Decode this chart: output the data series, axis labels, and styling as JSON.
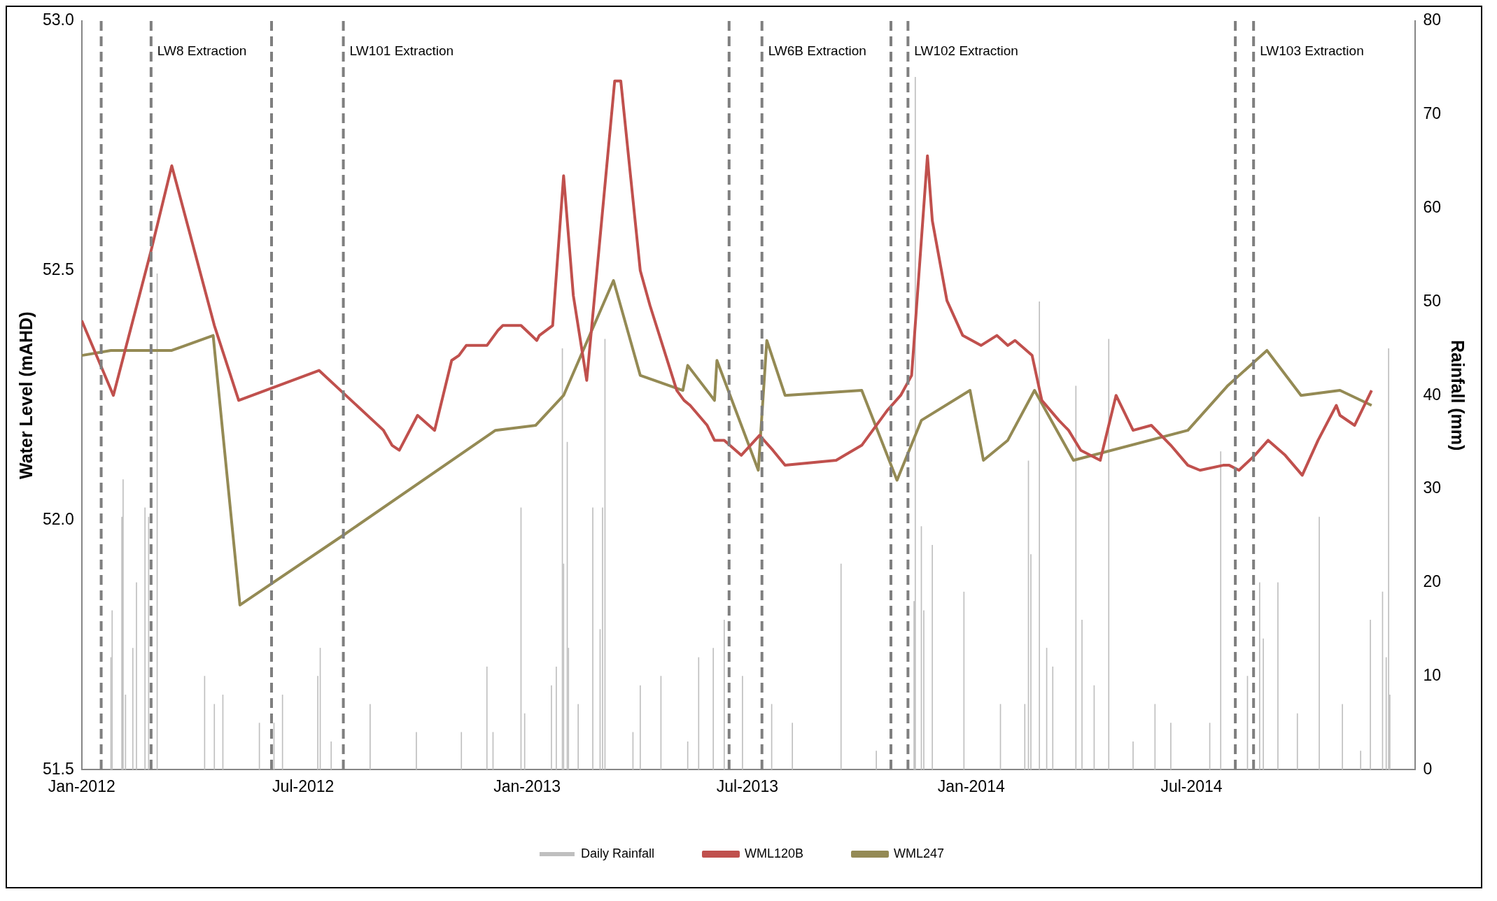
{
  "chart_data": {
    "type": "line",
    "xlabel": null,
    "ylabel": "Water Level (mAHD)",
    "y2label": "Rainfall (mm)",
    "legend": "bottom",
    "marker": "none",
    "line_style": "solid",
    "grid": false,
    "xlim": [
      "2012-01-01",
      "2015-01-01"
    ],
    "xticks": [
      {
        "value": "2012-01-01",
        "label": "Jan-2012"
      },
      {
        "value": "2012-07-01",
        "label": "Jul-2012"
      },
      {
        "value": "2013-01-01",
        "label": "Jan-2013"
      },
      {
        "value": "2013-07-01",
        "label": "Jul-2013"
      },
      {
        "value": "2014-01-01",
        "label": "Jan-2014"
      },
      {
        "value": "2014-07-01",
        "label": "Jul-2014"
      }
    ],
    "ylim": [
      51.5,
      53.0
    ],
    "yticks": [
      {
        "value": 51.5,
        "label": "51.5"
      },
      {
        "value": 52,
        "label": "52.0"
      },
      {
        "value": 52.5,
        "label": "52.5"
      },
      {
        "value": 53,
        "label": "53.0"
      }
    ],
    "y2lim": [
      0,
      80
    ],
    "y2ticks": [
      0,
      10,
      20,
      30,
      40,
      50,
      60,
      70,
      80
    ],
    "ref_lines": [
      {
        "axis": "x",
        "value": "2012-01-17",
        "label": null,
        "color": "#7f7f7f",
        "line_style": "dashed"
      },
      {
        "axis": "x",
        "value": "2012-02-27",
        "label": "LW8 Extraction",
        "color": "#7f7f7f",
        "line_style": "dashed"
      },
      {
        "axis": "x",
        "value": "2012-06-05",
        "label": null,
        "color": "#7f7f7f",
        "line_style": "dashed"
      },
      {
        "axis": "x",
        "value": "2012-08-03",
        "label": "LW101 Extraction",
        "color": "#7f7f7f",
        "line_style": "dashed"
      },
      {
        "axis": "x",
        "value": "2013-06-16",
        "label": null,
        "color": "#7f7f7f",
        "line_style": "dashed"
      },
      {
        "axis": "x",
        "value": "2013-07-13",
        "label": "LW6B Extraction",
        "color": "#7f7f7f",
        "line_style": "dashed"
      },
      {
        "axis": "x",
        "value": "2013-10-27",
        "label": null,
        "color": "#7f7f7f",
        "line_style": "dashed"
      },
      {
        "axis": "x",
        "value": "2013-11-10",
        "label": "LW102 Extraction",
        "color": "#7f7f7f",
        "line_style": "dashed"
      },
      {
        "axis": "x",
        "value": "2014-08-06",
        "label": null,
        "color": "#7f7f7f",
        "line_style": "dashed"
      },
      {
        "axis": "x",
        "value": "2014-08-21",
        "label": "LW103 Extraction",
        "color": "#7f7f7f",
        "line_style": "dashed"
      }
    ],
    "series": [
      {
        "name": "Daily Rainfall",
        "type": "bar",
        "axis": "y2",
        "color": "#bfbfbf",
        "x": [
          "2012-01-25",
          "2012-01-26",
          "2012-02-03",
          "2012-02-04",
          "2012-02-06",
          "2012-02-12",
          "2012-02-15",
          "2012-02-22",
          "2012-02-25",
          "2012-03-03",
          "2012-04-11",
          "2012-04-19",
          "2012-04-26",
          "2012-05-26",
          "2012-06-07",
          "2012-06-14",
          "2012-07-13",
          "2012-07-15",
          "2012-07-24",
          "2012-08-25",
          "2012-10-02",
          "2012-11-08",
          "2012-11-29",
          "2012-12-04",
          "2012-12-27",
          "2012-12-30",
          "2013-01-21",
          "2013-01-25",
          "2013-01-30",
          "2013-01-31",
          "2013-02-03",
          "2013-02-04",
          "2013-02-12",
          "2013-02-24",
          "2013-03-02",
          "2013-03-04",
          "2013-03-06",
          "2013-03-29",
          "2013-04-04",
          "2013-04-21",
          "2013-05-13",
          "2013-05-22",
          "2013-06-03",
          "2013-06-12",
          "2013-06-27",
          "2013-07-21",
          "2013-08-07",
          "2013-09-16",
          "2013-10-15",
          "2013-11-15",
          "2013-11-16",
          "2013-11-21",
          "2013-11-23",
          "2013-11-30",
          "2013-12-26",
          "2014-01-25",
          "2014-02-14",
          "2014-02-17",
          "2014-02-19",
          "2014-02-26",
          "2014-03-04",
          "2014-03-09",
          "2014-03-28",
          "2014-04-02",
          "2014-04-12",
          "2014-04-24",
          "2014-05-14",
          "2014-06-01",
          "2014-06-14",
          "2014-07-16",
          "2014-07-25",
          "2014-08-16",
          "2014-08-26",
          "2014-08-29",
          "2014-09-10",
          "2014-09-26",
          "2014-10-14",
          "2014-11-02",
          "2014-11-17",
          "2014-11-25",
          "2014-12-05",
          "2014-12-08",
          "2014-12-10",
          "2014-12-11"
        ],
        "values": [
          12,
          17,
          27,
          31,
          8,
          13,
          20,
          28,
          27,
          53,
          10,
          7,
          8,
          5,
          5,
          8,
          10,
          13,
          3,
          7,
          4,
          4,
          11,
          4,
          28,
          6,
          9,
          11,
          45,
          22,
          35,
          13,
          7,
          28,
          15,
          28,
          46,
          4,
          9,
          10,
          3,
          12,
          13,
          16,
          10,
          7,
          5,
          22,
          2,
          18,
          74,
          26,
          17,
          24,
          19,
          7,
          7,
          33,
          23,
          50,
          13,
          11,
          41,
          16,
          9,
          46,
          3,
          7,
          5,
          5,
          34,
          10,
          20,
          14,
          20,
          6,
          27,
          7,
          2,
          16,
          19,
          12,
          45,
          8
        ]
      },
      {
        "name": "WML120B",
        "color": "#c0504d",
        "x": [
          "2012-01-01",
          "2012-01-27",
          "2012-02-27",
          "2012-03-15",
          "2012-04-19",
          "2012-05-09",
          "2012-07-14",
          "2012-09-05",
          "2012-09-12",
          "2012-09-18",
          "2012-10-03",
          "2012-10-17",
          "2012-10-31",
          "2012-11-06",
          "2012-11-12",
          "2012-11-29",
          "2012-12-08",
          "2012-12-12",
          "2012-12-27",
          "2013-01-09",
          "2013-01-11",
          "2013-01-22",
          "2013-01-31",
          "2013-02-08",
          "2013-02-19",
          "2013-03-14",
          "2013-03-19",
          "2013-04-04",
          "2013-04-12",
          "2013-05-04",
          "2013-05-10",
          "2013-05-15",
          "2013-05-29",
          "2013-06-04",
          "2013-06-12",
          "2013-06-26",
          "2013-07-11",
          "2013-07-22",
          "2013-08-01",
          "2013-09-12",
          "2013-09-19",
          "2013-10-03",
          "2013-10-24",
          "2013-11-04",
          "2013-11-13",
          "2013-11-26",
          "2013-11-30",
          "2013-12-12",
          "2013-12-25",
          "2014-01-09",
          "2014-01-22",
          "2014-01-31",
          "2014-02-06",
          "2014-02-20",
          "2014-02-28",
          "2014-03-14",
          "2014-03-22",
          "2014-04-01",
          "2014-04-17",
          "2014-04-30",
          "2014-05-14",
          "2014-05-29",
          "2014-06-14",
          "2014-06-28",
          "2014-07-08",
          "2014-07-27",
          "2014-08-01",
          "2014-08-09",
          "2014-08-22",
          "2014-09-02",
          "2014-09-16",
          "2014-09-30",
          "2014-10-13",
          "2014-10-28",
          "2014-10-31",
          "2014-11-12",
          "2014-11-26"
        ],
        "values": [
          52.4,
          52.25,
          52.54,
          52.71,
          52.39,
          52.24,
          52.3,
          52.18,
          52.15,
          52.14,
          52.21,
          52.18,
          52.32,
          52.33,
          52.35,
          52.35,
          52.38,
          52.39,
          52.39,
          52.36,
          52.37,
          52.39,
          52.69,
          52.45,
          52.28,
          52.88,
          52.88,
          52.5,
          52.43,
          52.26,
          52.24,
          52.23,
          52.19,
          52.16,
          52.16,
          52.13,
          52.17,
          52.14,
          52.11,
          52.12,
          52.13,
          52.15,
          52.22,
          52.25,
          52.29,
          52.73,
          52.6,
          52.44,
          52.37,
          52.35,
          52.37,
          52.35,
          52.36,
          52.33,
          52.24,
          52.2,
          52.18,
          52.14,
          52.12,
          52.25,
          52.18,
          52.19,
          52.15,
          52.11,
          52.1,
          52.11,
          52.11,
          52.1,
          52.13,
          52.16,
          52.13,
          52.09,
          52.16,
          52.23,
          52.21,
          52.19,
          52.26
        ]
      },
      {
        "name": "WML247",
        "color": "#948a54",
        "x": [
          "2012-01-01",
          "2012-01-25",
          "2012-03-15",
          "2012-04-18",
          "2012-05-10",
          "2012-08-03",
          "2012-12-06",
          "2013-01-08",
          "2013-01-31",
          "2013-03-13",
          "2013-04-04",
          "2013-05-09",
          "2013-05-13",
          "2013-06-04",
          "2013-06-06",
          "2013-07-10",
          "2013-07-17",
          "2013-08-01",
          "2013-10-03",
          "2013-11-01",
          "2013-11-21",
          "2013-12-31",
          "2014-01-11",
          "2014-01-31",
          "2014-02-22",
          "2014-03-26",
          "2014-06-28",
          "2014-07-31",
          "2014-09-01",
          "2014-09-29",
          "2014-10-31",
          "2014-11-26"
        ],
        "values": [
          52.33,
          52.34,
          52.34,
          52.37,
          51.83,
          51.97,
          52.18,
          52.19,
          52.25,
          52.48,
          52.29,
          52.26,
          52.31,
          52.24,
          52.32,
          52.1,
          52.36,
          52.25,
          52.26,
          52.08,
          52.2,
          52.26,
          52.12,
          52.16,
          52.26,
          52.12,
          52.18,
          52.27,
          52.34,
          52.25,
          52.26,
          52.23
        ]
      }
    ]
  }
}
